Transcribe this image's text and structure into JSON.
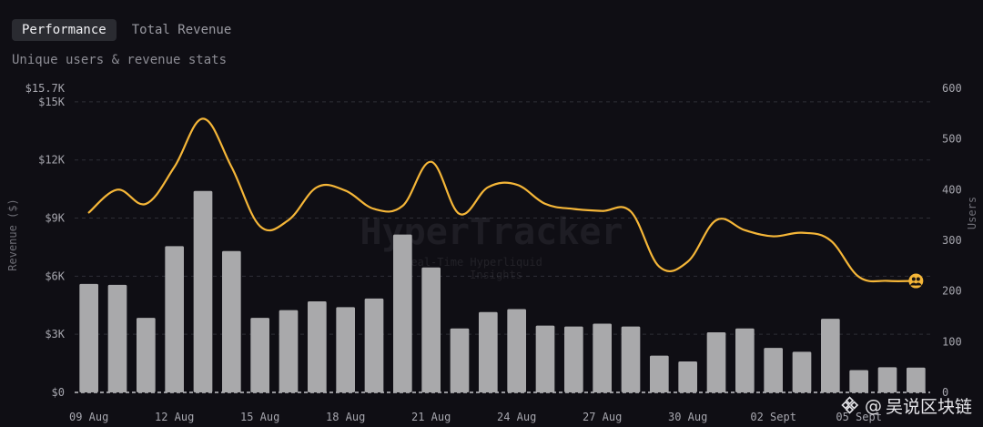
{
  "tabs": [
    {
      "label": "Performance",
      "active": true
    },
    {
      "label": "Total Revenue",
      "active": false
    }
  ],
  "subtitle": "Unique users & revenue stats",
  "watermark": {
    "name": "HyperTracker",
    "line1": "Real-Time Hyperliquid",
    "line2": "Insights"
  },
  "footer": {
    "at": "@",
    "text": "吴说区块链"
  },
  "colors": {
    "background": "#0f0e14",
    "bar": "#a9a9ab",
    "line": "#f5b638",
    "grid": "#2e2e36"
  },
  "chart_data": {
    "type": "bar",
    "ylabel": "Revenue ($)",
    "ylabel_right": "Users",
    "left_axis": {
      "range": [
        0,
        15700
      ],
      "ticks": [
        {
          "value": 0,
          "label": "$0"
        },
        {
          "value": 3000,
          "label": "$3K"
        },
        {
          "value": 6000,
          "label": "$6K"
        },
        {
          "value": 9000,
          "label": "$9K"
        },
        {
          "value": 12000,
          "label": "$12K"
        },
        {
          "value": 15000,
          "label": "$15K"
        },
        {
          "value": 15700,
          "label": "$15.7K"
        }
      ]
    },
    "right_axis": {
      "range": [
        0,
        600
      ],
      "ticks": [
        {
          "value": 0,
          "label": "0"
        },
        {
          "value": 100,
          "label": "100"
        },
        {
          "value": 200,
          "label": "200"
        },
        {
          "value": 300,
          "label": "300"
        },
        {
          "value": 400,
          "label": "400"
        },
        {
          "value": 500,
          "label": "500"
        },
        {
          "value": 600,
          "label": "600"
        }
      ]
    },
    "x_tick_labels": [
      {
        "index": 0,
        "label": "09 Aug"
      },
      {
        "index": 3,
        "label": "12 Aug"
      },
      {
        "index": 6,
        "label": "15 Aug"
      },
      {
        "index": 9,
        "label": "18 Aug"
      },
      {
        "index": 12,
        "label": "21 Aug"
      },
      {
        "index": 15,
        "label": "24 Aug"
      },
      {
        "index": 18,
        "label": "27 Aug"
      },
      {
        "index": 21,
        "label": "30 Aug"
      },
      {
        "index": 24,
        "label": "02 Sept"
      },
      {
        "index": 27,
        "label": "05 Sept"
      }
    ],
    "grid": true,
    "series": [
      {
        "name": "Revenue",
        "type": "bar",
        "axis": "left",
        "values": [
          5600,
          5550,
          3850,
          7550,
          10400,
          7300,
          3850,
          4250,
          4700,
          4400,
          4850,
          8150,
          6450,
          3300,
          4150,
          4300,
          3450,
          3400,
          3550,
          3400,
          1900,
          1600,
          3100,
          3300,
          2300,
          2100,
          3800,
          1150,
          1300,
          1280
        ]
      },
      {
        "name": "Users",
        "type": "line",
        "axis": "right",
        "values": [
          355,
          400,
          372,
          445,
          540,
          445,
          328,
          340,
          405,
          398,
          362,
          368,
          455,
          352,
          405,
          410,
          372,
          362,
          358,
          357,
          248,
          258,
          340,
          320,
          308,
          315,
          300,
          228,
          220,
          220
        ]
      }
    ]
  }
}
